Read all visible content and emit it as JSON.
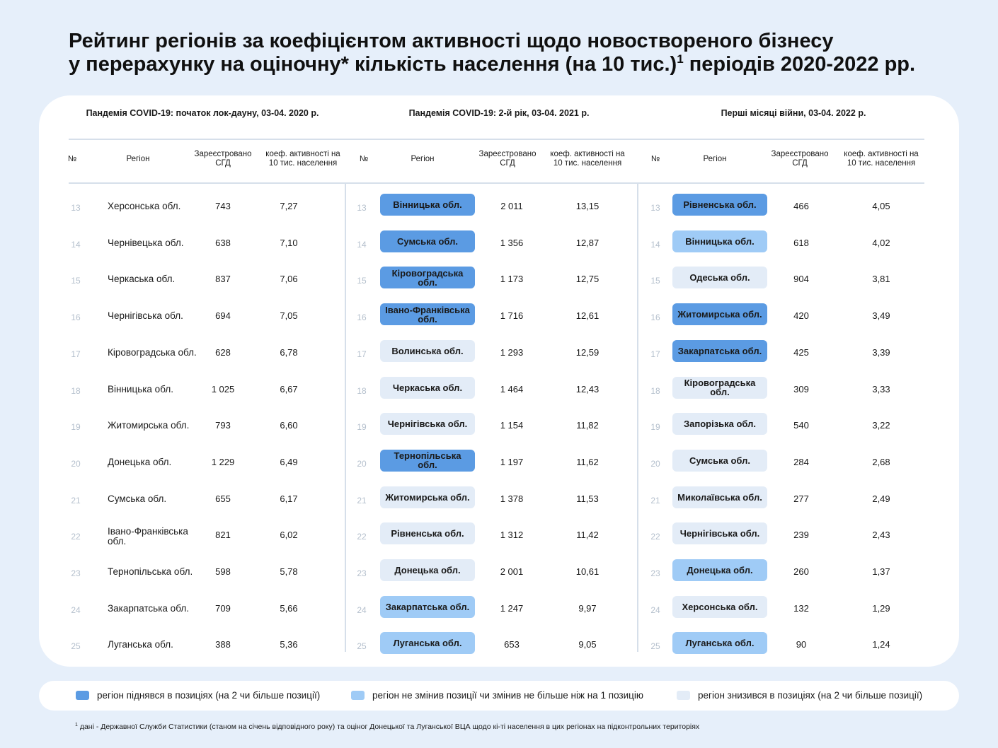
{
  "title": {
    "line1": "Рейтинг регіонів за коефіцієнтом активності щодо новоствореного бізнесу",
    "line2_pre": "у перерахунку на оціночну* кількість населення (на 10 тис.)",
    "line2_sup": "1",
    "line2_post": " періодів 2020-2022 рр."
  },
  "colors": {
    "up": "#5b9be3",
    "same": "#9fcbf6",
    "down": "#e3ecf7"
  },
  "column_headers": {
    "num": "№",
    "region": "Регіон",
    "registered": "Зареєстровано СГД",
    "coef": "коеф. активності на 10 тис. населення"
  },
  "periods": [
    {
      "title": "Пандемія COVID-19: початок лок-дауну, 03-04. 2020 р.",
      "rows": [
        {
          "rank": "13",
          "region": "Херсонська обл.",
          "registered": "743",
          "coef": "7,27"
        },
        {
          "rank": "14",
          "region": "Чернівецька обл.",
          "registered": "638",
          "coef": "7,10"
        },
        {
          "rank": "15",
          "region": "Черкаська обл.",
          "registered": "837",
          "coef": "7,06"
        },
        {
          "rank": "16",
          "region": "Чернігівська обл.",
          "registered": "694",
          "coef": "7,05"
        },
        {
          "rank": "17",
          "region": "Кіровоградська обл.",
          "registered": "628",
          "coef": "6,78"
        },
        {
          "rank": "18",
          "region": "Вінницька обл.",
          "registered": "1 025",
          "coef": "6,67"
        },
        {
          "rank": "19",
          "region": "Житомирська обл.",
          "registered": "793",
          "coef": "6,60"
        },
        {
          "rank": "20",
          "region": "Донецька обл.",
          "registered": "1 229",
          "coef": "6,49"
        },
        {
          "rank": "21",
          "region": "Сумська обл.",
          "registered": "655",
          "coef": "6,17"
        },
        {
          "rank": "22",
          "region": "Івано-Франківська обл.",
          "registered": "821",
          "coef": "6,02"
        },
        {
          "rank": "23",
          "region": "Тернопільська обл.",
          "registered": "598",
          "coef": "5,78"
        },
        {
          "rank": "24",
          "region": "Закарпатська обл.",
          "registered": "709",
          "coef": "5,66"
        },
        {
          "rank": "25",
          "region": "Луганська обл.",
          "registered": "388",
          "coef": "5,36"
        }
      ]
    },
    {
      "title": "Пандемія COVID-19: 2-й рік, 03-04. 2021 р.",
      "rows": [
        {
          "rank": "13",
          "region": "Вінницька обл.",
          "registered": "2 011",
          "coef": "13,15",
          "status": "up"
        },
        {
          "rank": "14",
          "region": "Сумська обл.",
          "registered": "1 356",
          "coef": "12,87",
          "status": "up"
        },
        {
          "rank": "15",
          "region": "Кіровоградська обл.",
          "registered": "1 173",
          "coef": "12,75",
          "status": "up"
        },
        {
          "rank": "16",
          "region": "Івано-Франківська обл.",
          "registered": "1 716",
          "coef": "12,61",
          "status": "up"
        },
        {
          "rank": "17",
          "region": "Волинська обл.",
          "registered": "1 293",
          "coef": "12,59",
          "status": "down"
        },
        {
          "rank": "18",
          "region": "Черкаська обл.",
          "registered": "1 464",
          "coef": "12,43",
          "status": "down"
        },
        {
          "rank": "19",
          "region": "Чернігівська обл.",
          "registered": "1 154",
          "coef": "11,82",
          "status": "down"
        },
        {
          "rank": "20",
          "region": "Тернопільська обл.",
          "registered": "1 197",
          "coef": "11,62",
          "status": "up"
        },
        {
          "rank": "21",
          "region": "Житомирська обл.",
          "registered": "1 378",
          "coef": "11,53",
          "status": "down"
        },
        {
          "rank": "22",
          "region": "Рівненська обл.",
          "registered": "1 312",
          "coef": "11,42",
          "status": "down"
        },
        {
          "rank": "23",
          "region": "Донецька обл.",
          "registered": "2 001",
          "coef": "10,61",
          "status": "down"
        },
        {
          "rank": "24",
          "region": "Закарпатська обл.",
          "registered": "1 247",
          "coef": "9,97",
          "status": "same"
        },
        {
          "rank": "25",
          "region": "Луганська обл.",
          "registered": "653",
          "coef": "9,05",
          "status": "same"
        }
      ]
    },
    {
      "title": "Перші місяці війни, 03-04. 2022 р.",
      "rows": [
        {
          "rank": "13",
          "region": "Рівненська обл.",
          "registered": "466",
          "coef": "4,05",
          "status": "up"
        },
        {
          "rank": "14",
          "region": "Вінницька обл.",
          "registered": "618",
          "coef": "4,02",
          "status": "same"
        },
        {
          "rank": "15",
          "region": "Одеська обл.",
          "registered": "904",
          "coef": "3,81",
          "status": "down"
        },
        {
          "rank": "16",
          "region": "Житомирська обл.",
          "registered": "420",
          "coef": "3,49",
          "status": "up"
        },
        {
          "rank": "17",
          "region": "Закарпатська обл.",
          "registered": "425",
          "coef": "3,39",
          "status": "up"
        },
        {
          "rank": "18",
          "region": "Кіровоградська обл.",
          "registered": "309",
          "coef": "3,33",
          "status": "down"
        },
        {
          "rank": "19",
          "region": "Запорізька обл.",
          "registered": "540",
          "coef": "3,22",
          "status": "down"
        },
        {
          "rank": "20",
          "region": "Сумська обл.",
          "registered": "284",
          "coef": "2,68",
          "status": "down"
        },
        {
          "rank": "21",
          "region": "Миколаївська обл.",
          "registered": "277",
          "coef": "2,49",
          "status": "down"
        },
        {
          "rank": "22",
          "region": "Чернігівська обл.",
          "registered": "239",
          "coef": "2,43",
          "status": "down"
        },
        {
          "rank": "23",
          "region": "Донецька обл.",
          "registered": "260",
          "coef": "1,37",
          "status": "same"
        },
        {
          "rank": "24",
          "region": "Херсонська обл.",
          "registered": "132",
          "coef": "1,29",
          "status": "down"
        },
        {
          "rank": "25",
          "region": "Луганська обл.",
          "registered": "90",
          "coef": "1,24",
          "status": "same"
        }
      ]
    }
  ],
  "legend": {
    "up": "регіон піднявся в позиціях (на 2 чи більше позиції)",
    "same": "регіон не змінив позиції чи змінив не більше ніж на 1 позицію",
    "down": "регіон знизився в позиціях (на 2 чи більше позиції)"
  },
  "footnote": {
    "sup": "1",
    "text": " дані - Державної Служби Статистики (станом на січень відповідного року) та оціног Донецької та Луганської ВЦА щодо кі-ті населення в цих регіонах на підконтрольних територіях"
  }
}
